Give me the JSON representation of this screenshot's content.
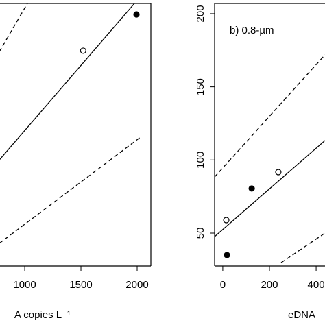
{
  "chart_data": [
    {
      "type": "scatter",
      "xlabel": "A copies L⁻¹",
      "xlim": [
        774,
        2122
      ],
      "ylim": [
        27.5,
        207
      ],
      "xticks": [
        1000,
        1500,
        2000
      ],
      "series": [
        {
          "kind": "points",
          "marker": "open",
          "color": "#000000",
          "x": [
            1520
          ],
          "y": [
            174.7
          ]
        },
        {
          "kind": "points",
          "marker": "filled",
          "color": "#000000",
          "x": [
            1994
          ],
          "y": [
            199.5
          ]
        },
        {
          "kind": "line",
          "style": "solid",
          "color": "#000000",
          "x": [
            774,
            1976
          ],
          "y": [
            100,
            207
          ]
        },
        {
          "kind": "line",
          "style": "dashed",
          "color": "#000000",
          "x": [
            774,
            1024
          ],
          "y": [
            174,
            207
          ]
        },
        {
          "kind": "line",
          "style": "dashed",
          "color": "#000000",
          "x": [
            774,
            2030
          ],
          "y": [
            43,
            115.6
          ]
        }
      ]
    },
    {
      "type": "scatter",
      "xlabel": "eDNA",
      "annotation": "b) 0.8-µm",
      "xlim": [
        -35,
        438
      ],
      "ylim": [
        27.5,
        207
      ],
      "xticks": [
        0,
        200,
        400
      ],
      "yticks": [
        50,
        100,
        150,
        200
      ],
      "series": [
        {
          "kind": "points",
          "marker": "open",
          "color": "#000000",
          "x": [
            15,
            238
          ],
          "y": [
            58.9,
            91.7
          ]
        },
        {
          "kind": "points",
          "marker": "filled",
          "color": "#000000",
          "x": [
            18,
            124
          ],
          "y": [
            35,
            80.5
          ]
        },
        {
          "kind": "line",
          "style": "solid",
          "color": "#000000",
          "x": [
            -35,
            438
          ],
          "y": [
            47.6,
            113.3
          ]
        },
        {
          "kind": "line",
          "style": "dashed",
          "color": "#000000",
          "x": [
            -35,
            438
          ],
          "y": [
            88.4,
            171.9
          ]
        },
        {
          "kind": "line",
          "style": "dashed",
          "color": "#000000",
          "x": [
            250,
            438
          ],
          "y": [
            29.8,
            50
          ]
        }
      ]
    }
  ]
}
